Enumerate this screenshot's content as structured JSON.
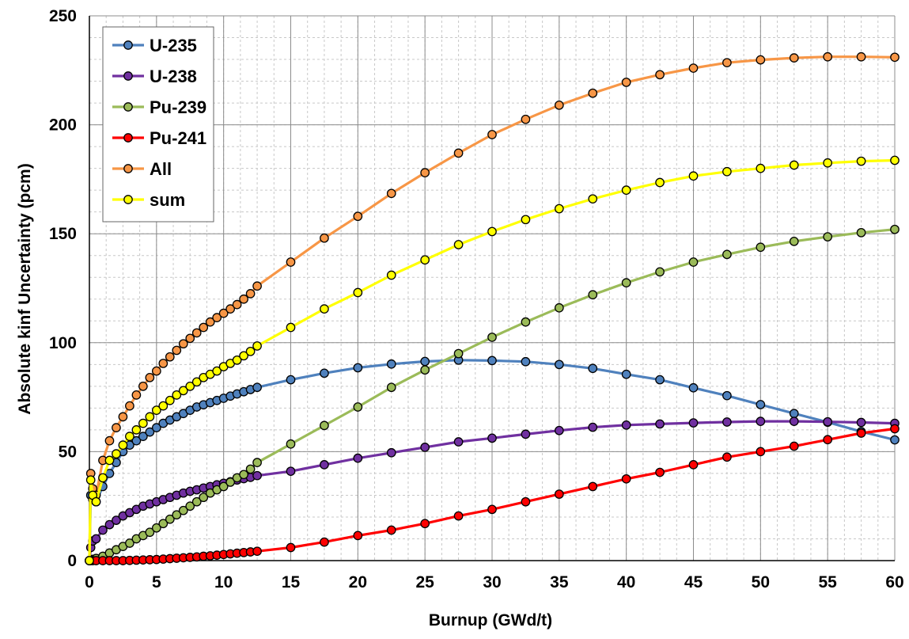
{
  "chart_data": {
    "type": "line",
    "title": "",
    "xlabel": "Burnup (GWd/t)",
    "ylabel": "Absolute kinf Uncertainty (pcm)",
    "xlim": [
      0,
      60
    ],
    "ylim": [
      0,
      250
    ],
    "x_ticks": [
      0,
      5,
      10,
      15,
      20,
      25,
      30,
      35,
      40,
      45,
      50,
      55,
      60
    ],
    "y_ticks": [
      0,
      50,
      100,
      150,
      200,
      250
    ],
    "grid": true,
    "legend_position": "top-left",
    "x": [
      0,
      0.1,
      0.25,
      0.5,
      1,
      1.5,
      2,
      2.5,
      3,
      3.5,
      4,
      4.5,
      5,
      5.5,
      6,
      6.5,
      7,
      7.5,
      8,
      8.5,
      9,
      9.5,
      10,
      10.5,
      11,
      11.5,
      12,
      12.5,
      15,
      17.5,
      20,
      22.5,
      25,
      27.5,
      30,
      32.5,
      35,
      37.5,
      40,
      42.5,
      45,
      47.5,
      50,
      52.5,
      55,
      57.5,
      60
    ],
    "series": [
      {
        "name": "U-235",
        "color": "#4f81bd",
        "values": [
          0,
          30,
          28,
          27,
          34,
          40,
          45,
          50,
          53,
          55,
          57,
          59,
          61,
          63,
          64.5,
          66,
          67.5,
          69,
          70.5,
          71.5,
          72.5,
          73.5,
          74.5,
          75.5,
          76.5,
          77.5,
          78.5,
          79.5,
          83,
          86,
          88.5,
          90.2,
          91.4,
          92,
          91.8,
          91.3,
          90,
          88.2,
          85.5,
          83,
          79.3,
          75.7,
          71.6,
          67.5,
          63.5,
          59.2,
          55.4
        ]
      },
      {
        "name": "U-238",
        "color": "#7030a0",
        "values": [
          0,
          6,
          9,
          10,
          14,
          16.5,
          18.5,
          20.5,
          22,
          23.5,
          25,
          26,
          27,
          28,
          29,
          30,
          31,
          31.8,
          32.5,
          33.3,
          34,
          34.8,
          35.5,
          36.2,
          37,
          37.6,
          38.2,
          39,
          41,
          44,
          47,
          49.5,
          52,
          54.5,
          56.2,
          58,
          59.7,
          61.2,
          62.2,
          62.7,
          63.2,
          63.6,
          63.9,
          63.9,
          63.7,
          63.4,
          63
        ]
      },
      {
        "name": "Pu-239",
        "color": "#9bbb59",
        "values": [
          0,
          0.3,
          0.6,
          1,
          2,
          3.5,
          5,
          6.5,
          8,
          10,
          11.5,
          13,
          15,
          17,
          19,
          21,
          23,
          25,
          27,
          29,
          31,
          32.5,
          34,
          36,
          38,
          39.5,
          42,
          45,
          53.5,
          62,
          70.5,
          79.5,
          87.5,
          95,
          102.5,
          109.5,
          116,
          122,
          127.5,
          132.5,
          137,
          140.5,
          143.8,
          146.5,
          148.6,
          150.5,
          152
        ]
      },
      {
        "name": "Pu-241",
        "color": "#ff0000",
        "values": [
          0,
          0,
          0,
          0,
          0,
          0,
          0,
          0,
          0.1,
          0.2,
          0.3,
          0.4,
          0.5,
          0.7,
          0.9,
          1.1,
          1.3,
          1.5,
          1.7,
          2,
          2.2,
          2.5,
          2.8,
          3.1,
          3.4,
          3.7,
          4,
          4.3,
          6,
          8.5,
          11.5,
          14,
          17,
          20.5,
          23.5,
          27,
          30.5,
          34,
          37.5,
          40.5,
          44,
          47.5,
          50,
          52.5,
          55.5,
          58.5,
          60.5
        ]
      },
      {
        "name": "All",
        "color": "#f79646",
        "values": [
          0,
          40,
          33,
          30,
          46,
          55,
          61,
          66,
          71,
          76,
          80,
          84,
          87,
          90.5,
          93.5,
          96.5,
          99.5,
          102,
          104.5,
          107,
          109.5,
          111.5,
          113.5,
          115.5,
          117.5,
          120,
          122.5,
          126,
          137,
          148,
          158,
          168.5,
          178,
          187,
          195.5,
          202.5,
          209,
          214.5,
          219.5,
          223,
          226,
          228.5,
          229.8,
          230.7,
          231.2,
          231.2,
          231
        ]
      },
      {
        "name": "sum",
        "color": "#ffff00",
        "values": [
          0,
          37,
          30,
          27,
          38,
          46,
          49,
          53,
          57,
          60,
          63,
          66,
          69,
          71,
          73.5,
          76,
          78,
          80,
          82,
          84,
          85.5,
          87,
          89,
          90.5,
          92,
          94,
          96,
          98.5,
          107,
          115.5,
          123,
          131,
          138,
          145,
          151,
          156.5,
          161.5,
          166,
          170,
          173.5,
          176.5,
          178.5,
          180,
          181.5,
          182.5,
          183.3,
          183.7
        ]
      }
    ]
  }
}
